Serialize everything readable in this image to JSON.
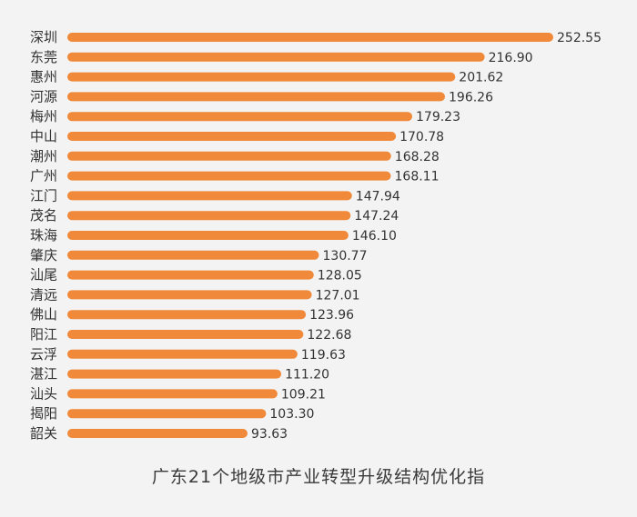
{
  "colors": {
    "bar": "#f08a3a",
    "background": "#f3f3f3",
    "text": "#333333"
  },
  "chart_data": {
    "type": "bar",
    "orientation": "horizontal",
    "title": "广东21个地级市产业转型升级结构优化指",
    "categories": [
      "深圳",
      "东莞",
      "惠州",
      "河源",
      "梅州",
      "中山",
      "潮州",
      "广州",
      "江门",
      "茂名",
      "珠海",
      "肇庆",
      "汕尾",
      "清远",
      "佛山",
      "阳江",
      "云浮",
      "湛江",
      "汕头",
      "揭阳",
      "韶关"
    ],
    "values": [
      252.55,
      216.9,
      201.62,
      196.26,
      179.23,
      170.78,
      168.28,
      168.11,
      147.94,
      147.24,
      146.1,
      130.77,
      128.05,
      127.01,
      123.96,
      122.68,
      119.63,
      111.2,
      109.21,
      103.3,
      93.63
    ],
    "value_labels": [
      "252.55",
      "216.90",
      "201.62",
      "196.26",
      "179.23",
      "170.78",
      "168.28",
      "168.11",
      "147.94",
      "147.24",
      "146.10",
      "130.77",
      "128.05",
      "127.01",
      "123.96",
      "122.68",
      "119.63",
      "111.20",
      "109.21",
      "103.30",
      "93.63"
    ],
    "xlim": [
      0,
      252.55
    ],
    "grid": false,
    "legend": "none"
  }
}
